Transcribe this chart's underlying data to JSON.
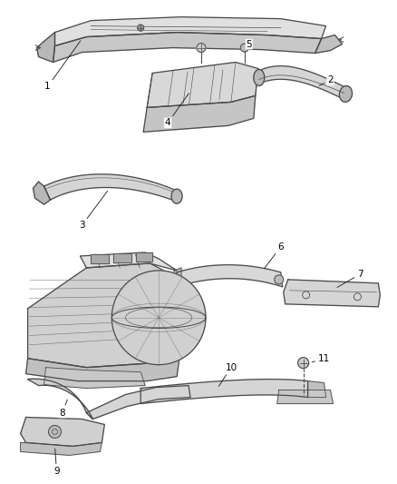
{
  "bg_color": "#ffffff",
  "line_color": "#4a4a4a",
  "fill_light": "#e8e8e8",
  "fill_mid": "#d0d0d0",
  "fill_dark": "#b8b8b8",
  "label_color": "#000000",
  "fig_width": 4.38,
  "fig_height": 5.33,
  "dpi": 100,
  "lw_main": 0.9,
  "lw_thin": 0.6,
  "label_fs": 7.5
}
